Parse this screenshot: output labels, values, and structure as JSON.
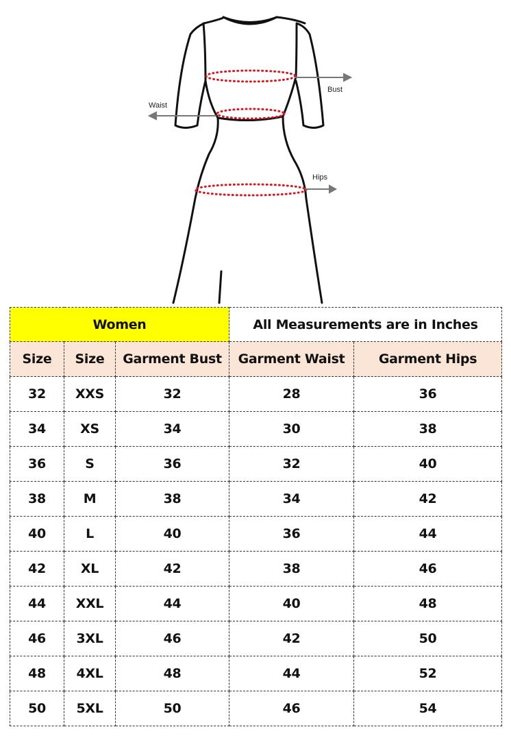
{
  "diagram": {
    "labels": {
      "bust": "Bust",
      "waist": "Waist",
      "hips": "Hips"
    },
    "colors": {
      "outline": "#111111",
      "measure_dots": "#e0141e",
      "arrows": "#777777"
    }
  },
  "table": {
    "group_label": "Women",
    "note": "All Measurements are in Inches",
    "columns": [
      "Size",
      "Size",
      "Garment Bust",
      "Garment Waist",
      "Garment Hips"
    ],
    "rows": [
      [
        "32",
        "XXS",
        "32",
        "28",
        "36"
      ],
      [
        "34",
        "XS",
        "34",
        "30",
        "38"
      ],
      [
        "36",
        "S",
        "36",
        "32",
        "40"
      ],
      [
        "38",
        "M",
        "38",
        "34",
        "42"
      ],
      [
        "40",
        "L",
        "40",
        "36",
        "44"
      ],
      [
        "42",
        "XL",
        "42",
        "38",
        "46"
      ],
      [
        "44",
        "XXL",
        "44",
        "40",
        "48"
      ],
      [
        "46",
        "3XL",
        "46",
        "42",
        "50"
      ],
      [
        "48",
        "4XL",
        "48",
        "44",
        "52"
      ],
      [
        "50",
        "5XL",
        "50",
        "46",
        "54"
      ]
    ],
    "colors": {
      "group_bg": "#ffff00",
      "header_bg": "#fbe5d6"
    }
  }
}
